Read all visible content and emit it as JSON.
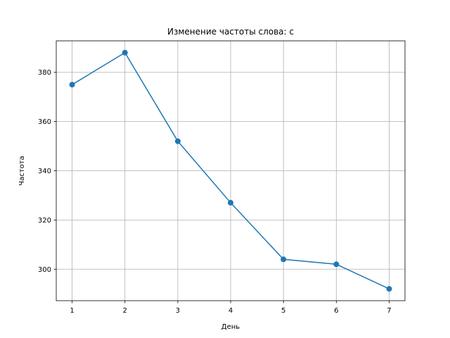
{
  "chart_data": {
    "type": "line",
    "title": "Изменение частоты слова: с",
    "xlabel": "День",
    "ylabel": "Частота",
    "x": [
      1,
      2,
      3,
      4,
      5,
      6,
      7
    ],
    "xticks": [
      "1",
      "2",
      "3",
      "4",
      "5",
      "6",
      "7"
    ],
    "yticks": [
      "300",
      "320",
      "340",
      "360",
      "380"
    ],
    "xlim": [
      0.7,
      7.3
    ],
    "ylim": [
      287.2,
      392.8
    ],
    "grid": true,
    "series": [
      {
        "values": [
          375,
          388,
          352,
          327,
          304,
          302,
          292
        ],
        "color": "#1f77b4",
        "marker": "circle"
      }
    ]
  }
}
